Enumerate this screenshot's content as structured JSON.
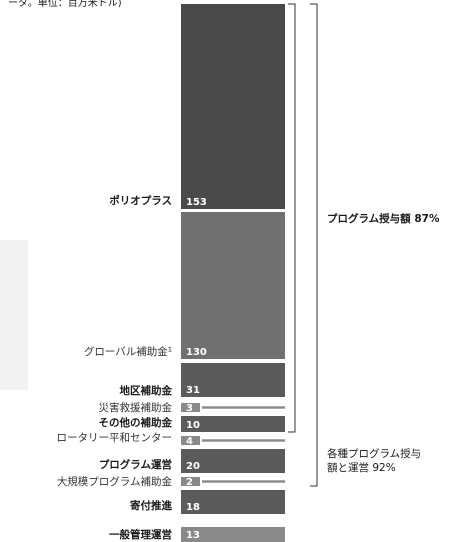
{
  "header_note": "ータ。単位：百万米ドル)",
  "chart_data": {
    "type": "bar",
    "orientation": "stacked-vertical",
    "unit": "百万米ドル",
    "categories": [
      "ポリオプラス",
      "グローバル補助金¹",
      "地区補助金",
      "災害救援補助金",
      "その他の補助金",
      "ロータリー平和センター",
      "プログラム運営",
      "大規模プログラム補助金",
      "寄付推進",
      "一般管理運営"
    ],
    "values": [
      153,
      130,
      31,
      3,
      10,
      4,
      20,
      2,
      18,
      13
    ],
    "value_labels": [
      "153",
      "130",
      "31",
      "3",
      "10",
      "4",
      "20",
      "2",
      "18",
      "13"
    ],
    "brackets": [
      {
        "label_lines": [
          "プログラム授与額 87%"
        ],
        "from_category": 0,
        "to_category": 5
      },
      {
        "label_lines": [
          "各種プログラム授与",
          "額と運営 92%"
        ],
        "from_category": 0,
        "to_category": 7
      }
    ],
    "colors": {
      "dark": "#4a4a4a",
      "medium": "#707070",
      "mid_dark": "#5b5b5b",
      "light": "#898989"
    }
  }
}
